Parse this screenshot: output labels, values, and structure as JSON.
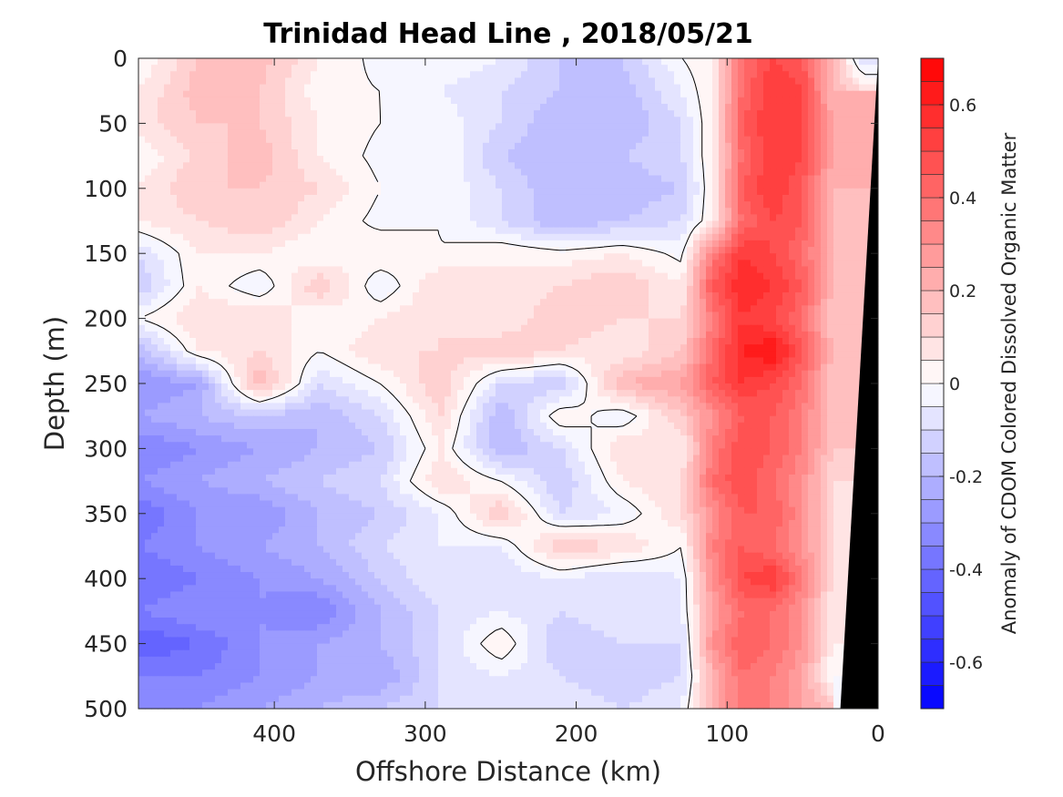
{
  "chart_data": {
    "type": "heatmap",
    "title": "Trinidad Head Line , 2018/05/21",
    "xlabel": "Offshore Distance (km)",
    "ylabel": "Depth (m)",
    "colorbar_label": "Anomaly of CDOM Colored Dissolved Organic Matter",
    "x_axis": {
      "range": [
        490,
        0
      ],
      "reversed": true,
      "ticks": [
        400,
        300,
        200,
        100,
        0
      ]
    },
    "y_axis": {
      "range": [
        0,
        500
      ],
      "reversed": true,
      "ticks": [
        0,
        50,
        100,
        150,
        200,
        250,
        300,
        350,
        400,
        450,
        500
      ]
    },
    "colorbar": {
      "range": [
        -0.7,
        0.7
      ],
      "step": 0.05,
      "ticks": [
        -0.6,
        -0.4,
        -0.2,
        0,
        0.2,
        0.4,
        0.6
      ],
      "tick_labels": [
        "-0.6",
        "-0.4",
        "-0.2",
        "0",
        "0.2",
        "0.4",
        "0.6"
      ],
      "negative_color": "#0000ff",
      "zero_color": "#ffffff",
      "positive_color": "#ff0000"
    },
    "contour_level": 0,
    "land_mask_color": "#000000",
    "bottom_boundary_km": [
      [
        0,
        0
      ],
      [
        25,
        500
      ]
    ],
    "x": [
      490,
      450,
      410,
      370,
      330,
      290,
      250,
      210,
      170,
      130,
      110,
      90,
      70,
      50,
      30,
      10
    ],
    "y": [
      0,
      25,
      50,
      75,
      100,
      125,
      150,
      175,
      200,
      225,
      250,
      275,
      300,
      325,
      350,
      375,
      400,
      425,
      450,
      475,
      500
    ],
    "z": [
      [
        0.0,
        0.15,
        0.18,
        0.05,
        -0.02,
        0.0,
        -0.05,
        -0.15,
        -0.15,
        0.0,
        0.05,
        0.4,
        0.5,
        0.45,
        0.2,
        -0.1
      ],
      [
        0.05,
        0.18,
        0.15,
        0.02,
        0.0,
        -0.05,
        -0.1,
        -0.15,
        -0.18,
        -0.05,
        0.05,
        0.4,
        0.55,
        0.5,
        0.2,
        null
      ],
      [
        0.08,
        0.15,
        0.15,
        0.05,
        0.0,
        -0.02,
        -0.1,
        -0.2,
        -0.2,
        -0.1,
        0.05,
        0.45,
        0.55,
        0.5,
        0.25,
        null
      ],
      [
        0.0,
        0.12,
        0.18,
        0.05,
        -0.02,
        0.0,
        -0.15,
        -0.2,
        -0.15,
        -0.1,
        0.05,
        0.4,
        0.55,
        0.5,
        0.25,
        null
      ],
      [
        0.05,
        0.15,
        0.15,
        0.1,
        0.0,
        0.0,
        -0.1,
        -0.2,
        -0.2,
        -0.15,
        0.05,
        0.45,
        0.55,
        0.45,
        0.2,
        null
      ],
      [
        0.05,
        0.1,
        0.15,
        0.05,
        -0.02,
        0.0,
        -0.1,
        -0.2,
        -0.15,
        -0.1,
        0.05,
        0.4,
        0.5,
        0.45,
        0.2,
        null
      ],
      [
        -0.1,
        0.05,
        0.05,
        0.0,
        0.05,
        0.0,
        0.05,
        0.02,
        0.05,
        -0.02,
        0.35,
        0.55,
        0.5,
        0.4,
        0.2,
        null
      ],
      [
        -0.15,
        0.05,
        -0.05,
        0.15,
        -0.05,
        0.1,
        0.05,
        0.1,
        0.15,
        0.05,
        0.45,
        0.6,
        0.55,
        0.45,
        0.2,
        null
      ],
      [
        0.0,
        0.1,
        0.1,
        0.0,
        0.05,
        0.1,
        0.05,
        0.15,
        0.1,
        0.1,
        0.35,
        0.55,
        0.5,
        0.4,
        0.15,
        null
      ],
      [
        -0.2,
        0.05,
        0.1,
        0.0,
        0.1,
        0.1,
        0.15,
        0.1,
        0.05,
        0.15,
        0.4,
        0.6,
        0.65,
        0.45,
        0.2,
        null
      ],
      [
        -0.3,
        -0.25,
        0.2,
        -0.1,
        0.0,
        0.15,
        -0.1,
        -0.15,
        0.2,
        0.25,
        0.45,
        0.55,
        0.5,
        0.4,
        0.15,
        null
      ],
      [
        -0.25,
        -0.2,
        -0.15,
        -0.2,
        -0.1,
        0.1,
        -0.2,
        0.05,
        -0.05,
        0.15,
        0.3,
        0.45,
        0.45,
        0.35,
        0.15,
        null
      ],
      [
        -0.35,
        -0.3,
        -0.25,
        -0.2,
        -0.15,
        0.05,
        -0.2,
        -0.1,
        0.1,
        0.05,
        0.35,
        0.5,
        0.45,
        0.35,
        0.15,
        null
      ],
      [
        -0.3,
        -0.25,
        -0.2,
        -0.15,
        -0.1,
        0.1,
        0.0,
        -0.15,
        0.05,
        0.1,
        0.4,
        0.5,
        0.4,
        0.3,
        0.1,
        null
      ],
      [
        -0.4,
        -0.3,
        -0.3,
        -0.2,
        -0.15,
        -0.05,
        0.15,
        -0.1,
        -0.05,
        0.1,
        0.3,
        0.45,
        0.45,
        0.3,
        0.1,
        null
      ],
      [
        -0.35,
        -0.3,
        -0.25,
        -0.2,
        -0.1,
        -0.05,
        -0.05,
        0.15,
        0.1,
        0.0,
        0.35,
        0.45,
        0.4,
        0.3,
        0.1,
        null
      ],
      [
        -0.4,
        -0.35,
        -0.3,
        -0.25,
        -0.15,
        -0.05,
        -0.1,
        -0.05,
        -0.1,
        -0.05,
        0.3,
        0.5,
        0.55,
        0.35,
        0.1,
        null
      ],
      [
        -0.35,
        -0.3,
        -0.3,
        -0.35,
        -0.2,
        -0.1,
        -0.05,
        -0.1,
        -0.05,
        -0.05,
        0.25,
        0.4,
        0.4,
        0.3,
        0.05,
        null
      ],
      [
        -0.45,
        -0.4,
        -0.3,
        -0.25,
        -0.2,
        -0.1,
        0.05,
        -0.15,
        -0.1,
        -0.1,
        0.3,
        0.45,
        0.4,
        0.3,
        0.05,
        null
      ],
      [
        -0.35,
        -0.35,
        -0.3,
        -0.25,
        -0.25,
        -0.1,
        -0.05,
        -0.1,
        -0.15,
        -0.1,
        0.2,
        0.4,
        0.35,
        0.25,
        0.0,
        null
      ],
      [
        -0.3,
        -0.3,
        -0.25,
        -0.2,
        -0.15,
        -0.1,
        -0.05,
        -0.05,
        -0.1,
        -0.05,
        0.2,
        0.4,
        0.35,
        0.25,
        null,
        null
      ]
    ]
  }
}
